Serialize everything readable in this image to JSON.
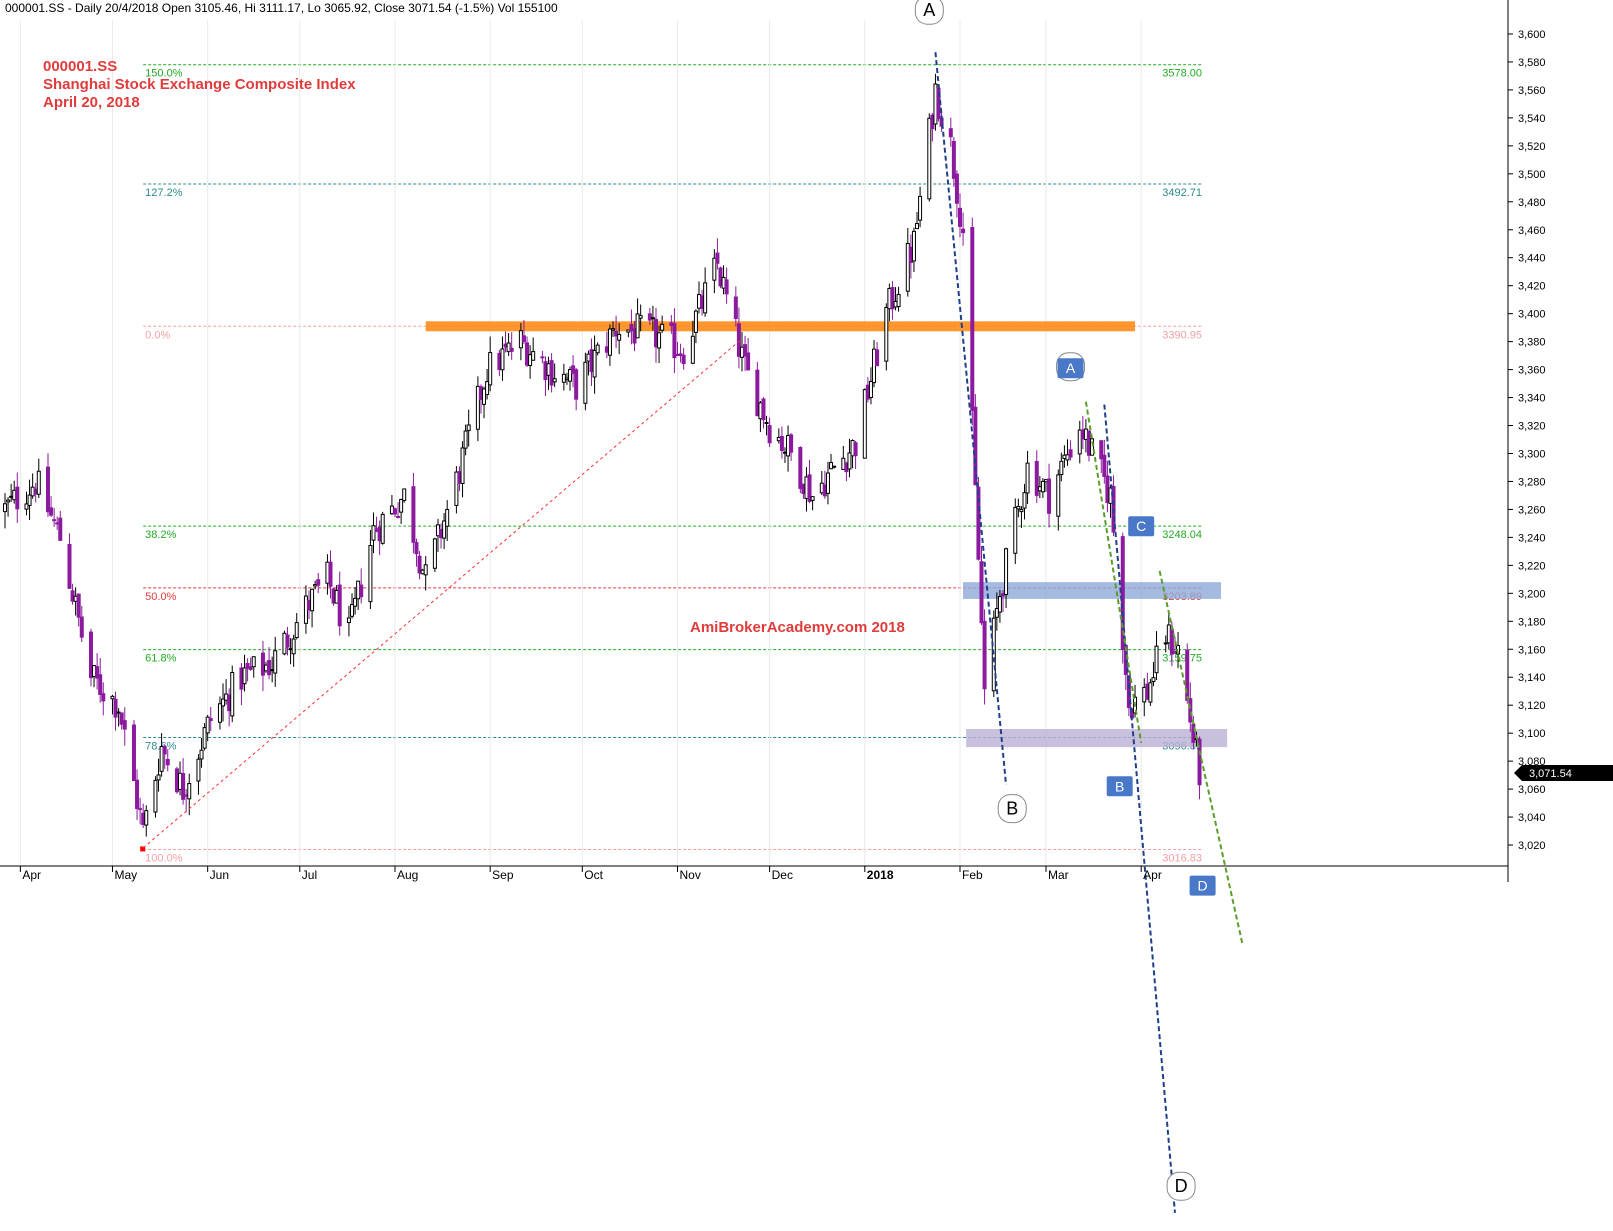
{
  "header": "000001.SS - Daily 20/4/2018 Open 3105.46, Hi 3111.17, Lo 3065.92, Close 3071.54 (-1.5%) Vol 155100",
  "title_lines": [
    "000001.SS",
    "Shanghai Stock Exchange Composite Index",
    "April 20, 2018"
  ],
  "watermark": "AmiBrokerAcademy.com  2018",
  "last_price_label": "3,071.54",
  "colors": {
    "bull": "#000000",
    "bear": "#8b1a9e",
    "title": "#e03c3c",
    "fib_green": "#22aa22",
    "fib_red": "#e03c3c",
    "fib_teal": "#2e8b8b",
    "fib_pink": "#f2a0a6",
    "resistance": "#ff8c1a",
    "zone_blue": "#8fa9d8",
    "zone_purple": "#bbb0d4",
    "pattern_blue": "#1f3f88",
    "pattern_green": "#5a9e2a",
    "badge": "#4a78c8"
  },
  "chart_data": {
    "type": "candlestick",
    "ylim": [
      3005,
      3610
    ],
    "yticks": [
      3020,
      3040,
      3060,
      3080,
      3100,
      3120,
      3140,
      3160,
      3180,
      3200,
      3220,
      3240,
      3260,
      3280,
      3300,
      3320,
      3340,
      3360,
      3380,
      3400,
      3420,
      3440,
      3460,
      3480,
      3500,
      3520,
      3540,
      3560,
      3580,
      3600
    ],
    "ytick_labels": [
      "3,020",
      "3,040",
      "3,060",
      "3,080",
      "3,100",
      "3,120",
      "3,140",
      "3,160",
      "3,180",
      "3,200",
      "3,220",
      "3,240",
      "3,260",
      "3,280",
      "3,300",
      "3,320",
      "3,340",
      "3,360",
      "3,380",
      "3,400",
      "3,420",
      "3,440",
      "3,460",
      "3,480",
      "3,500",
      "3,520",
      "3,540",
      "3,560",
      "3,580",
      "3,600"
    ],
    "x_date_range": [
      "2017-03-27",
      "2018-05-25"
    ],
    "month_labels": [
      {
        "label": "Apr",
        "date": "2017-04-01",
        "bold": false
      },
      {
        "label": "May",
        "date": "2017-05-01",
        "bold": false
      },
      {
        "label": "Jun",
        "date": "2017-06-01",
        "bold": false
      },
      {
        "label": "Jul",
        "date": "2017-07-01",
        "bold": false
      },
      {
        "label": "Aug",
        "date": "2017-08-01",
        "bold": false
      },
      {
        "label": "Sep",
        "date": "2017-09-01",
        "bold": false
      },
      {
        "label": "Oct",
        "date": "2017-10-01",
        "bold": false
      },
      {
        "label": "Nov",
        "date": "2017-11-01",
        "bold": false
      },
      {
        "label": "Dec",
        "date": "2017-12-01",
        "bold": false
      },
      {
        "label": "2018",
        "date": "2018-01-01",
        "bold": true
      },
      {
        "label": "Feb",
        "date": "2018-02-01",
        "bold": false
      },
      {
        "label": "Mar",
        "date": "2018-03-01",
        "bold": false
      },
      {
        "label": "Apr",
        "date": "2018-04-01",
        "bold": false
      }
    ],
    "closes": [
      {
        "date": "2017-03-27",
        "value": 3260
      },
      {
        "date": "2017-04-06",
        "value": 3280
      },
      {
        "date": "2017-04-14",
        "value": 3240
      },
      {
        "date": "2017-04-24",
        "value": 3140
      },
      {
        "date": "2017-05-03",
        "value": 3120
      },
      {
        "date": "2017-05-11",
        "value": 3030
      },
      {
        "date": "2017-05-17",
        "value": 3090
      },
      {
        "date": "2017-05-24",
        "value": 3060
      },
      {
        "date": "2017-06-02",
        "value": 3110
      },
      {
        "date": "2017-06-12",
        "value": 3140
      },
      {
        "date": "2017-06-22",
        "value": 3150
      },
      {
        "date": "2017-07-03",
        "value": 3190
      },
      {
        "date": "2017-07-10",
        "value": 3210
      },
      {
        "date": "2017-07-17",
        "value": 3170
      },
      {
        "date": "2017-07-25",
        "value": 3245
      },
      {
        "date": "2017-08-04",
        "value": 3270
      },
      {
        "date": "2017-08-11",
        "value": 3210
      },
      {
        "date": "2017-08-21",
        "value": 3280
      },
      {
        "date": "2017-08-31",
        "value": 3360
      },
      {
        "date": "2017-09-11",
        "value": 3380
      },
      {
        "date": "2017-09-21",
        "value": 3360
      },
      {
        "date": "2017-09-29",
        "value": 3348
      },
      {
        "date": "2017-10-12",
        "value": 3390
      },
      {
        "date": "2017-10-24",
        "value": 3385
      },
      {
        "date": "2017-11-03",
        "value": 3375
      },
      {
        "date": "2017-11-14",
        "value": 3435
      },
      {
        "date": "2017-11-23",
        "value": 3360
      },
      {
        "date": "2017-12-01",
        "value": 3320
      },
      {
        "date": "2017-12-08",
        "value": 3300
      },
      {
        "date": "2017-12-15",
        "value": 3270
      },
      {
        "date": "2017-12-22",
        "value": 3290
      },
      {
        "date": "2017-12-29",
        "value": 3307
      },
      {
        "date": "2018-01-08",
        "value": 3400
      },
      {
        "date": "2018-01-17",
        "value": 3450
      },
      {
        "date": "2018-01-24",
        "value": 3560
      },
      {
        "date": "2018-01-29",
        "value": 3520
      },
      {
        "date": "2018-02-02",
        "value": 3460
      },
      {
        "date": "2018-02-09",
        "value": 3130
      },
      {
        "date": "2018-02-14",
        "value": 3200
      },
      {
        "date": "2018-02-23",
        "value": 3290
      },
      {
        "date": "2018-03-02",
        "value": 3270
      },
      {
        "date": "2018-03-12",
        "value": 3320
      },
      {
        "date": "2018-03-22",
        "value": 3270
      },
      {
        "date": "2018-03-28",
        "value": 3120
      },
      {
        "date": "2018-04-03",
        "value": 3130
      },
      {
        "date": "2018-04-09",
        "value": 3170
      },
      {
        "date": "2018-04-13",
        "value": 3160
      },
      {
        "date": "2018-04-20",
        "value": 3071.54
      }
    ],
    "fib_levels": [
      {
        "pct": "150.0%",
        "value": 3578.0,
        "label": "3578.00",
        "color": "#22aa22"
      },
      {
        "pct": "127.2%",
        "value": 3492.71,
        "label": "3492.71",
        "color": "#2e8b8b"
      },
      {
        "pct": "0.0%",
        "value": 3390.95,
        "label": "3390.95",
        "color": "#f2a0a6"
      },
      {
        "pct": "38.2%",
        "value": 3248.04,
        "label": "3248.04",
        "color": "#22aa22"
      },
      {
        "pct": "50.0%",
        "value": 3203.89,
        "label": "3203.89",
        "color": "#e03c3c"
      },
      {
        "pct": "61.8%",
        "value": 3159.75,
        "label": "3159.75",
        "color": "#22aa22"
      },
      {
        "pct": "78.6%",
        "value": 3096.89,
        "label": "3096.89",
        "color": "#2e8b8b"
      },
      {
        "pct": "100.0%",
        "value": 3016.83,
        "label": "3016.83",
        "color": "#f2a0a6"
      }
    ],
    "resistance_band": {
      "value": 3390.95,
      "from": "2017-08-11",
      "to": "2018-03-30"
    },
    "zones": [
      {
        "name": "zone-3204",
        "from": "2018-02-02",
        "to": "2018-04-27",
        "low": 3196,
        "high": 3208,
        "color": "#8fa9d8"
      },
      {
        "name": "zone-3097",
        "from": "2018-02-03",
        "to": "2018-04-29",
        "low": 3090,
        "high": 3103,
        "color": "#bbb0d4"
      }
    ],
    "trendline": {
      "from": {
        "date": "2017-05-11",
        "value": 3018
      },
      "to": {
        "date": "2017-11-22",
        "value": 3382
      }
    },
    "pattern_lines": [
      {
        "name": "blue-AB",
        "color": "#1f3f88",
        "from": {
          "date": "2018-01-24",
          "value": 3587
        },
        "to": {
          "date": "2018-02-16",
          "value": 3063
        }
      },
      {
        "name": "blue-CD",
        "color": "#1f3f88",
        "from": {
          "date": "2018-03-20",
          "value": 3335
        },
        "to": {
          "date": "2018-04-12",
          "value": 2757
        }
      },
      {
        "name": "green-C1",
        "color": "#5a9e2a",
        "from": {
          "date": "2018-03-14",
          "value": 3337
        },
        "to": {
          "date": "2018-04-01",
          "value": 3093
        }
      },
      {
        "name": "green-D",
        "color": "#5a9e2a",
        "from": {
          "date": "2018-04-07",
          "value": 3216
        },
        "to": {
          "date": "2018-05-04",
          "value": 2949
        }
      }
    ],
    "point_labels": [
      {
        "text": "A",
        "style": "circle",
        "date": "2018-01-22",
        "value": 3617
      },
      {
        "text": "B",
        "style": "circle",
        "date": "2018-02-18",
        "value": 3046
      },
      {
        "text": "C",
        "style": "circle",
        "date": "2018-03-09",
        "value": 3362
      },
      {
        "text": "D",
        "style": "circle",
        "date": "2018-04-14",
        "value": 2776
      },
      {
        "text": "A",
        "style": "box",
        "date": "2018-03-09",
        "value": 3361
      },
      {
        "text": "C",
        "style": "box",
        "date": "2018-04-01",
        "value": 3248
      },
      {
        "text": "B",
        "style": "box",
        "date": "2018-03-25",
        "value": 3062
      },
      {
        "text": "D",
        "style": "box",
        "date": "2018-04-21",
        "value": 2991
      }
    ]
  }
}
